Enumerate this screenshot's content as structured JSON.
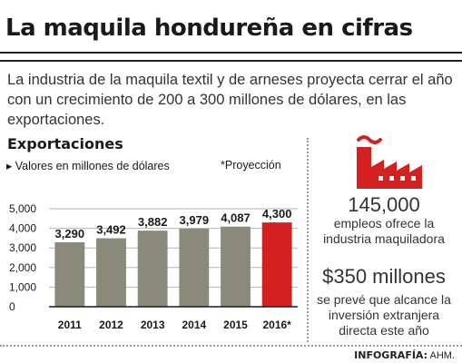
{
  "header": {
    "title": "La maquila hondureña en cifras"
  },
  "intro": "La industria de la maquila textil y de arneses proyecta cerrar el año con un crecimiento de 200 a 300 millones de dólares, en las exportaciones.",
  "chart_section": {
    "title": "Exportaciones",
    "units": "▸ Valores en millones de dólares",
    "projection_note": "*Proyección"
  },
  "chart_data": {
    "type": "bar",
    "title": "Exportaciones",
    "ylabel": "Valores en millones de dólares",
    "categories": [
      "2011",
      "2012",
      "2013",
      "2014",
      "2015",
      "2016*"
    ],
    "values": [
      3290,
      3492,
      3882,
      3979,
      4087,
      4300
    ],
    "value_labels": [
      "3,290",
      "3,492",
      "3,882",
      "3,979",
      "4,087",
      "4,300"
    ],
    "yticks": [
      "0",
      "1,000",
      "2,000",
      "3,000",
      "4,000",
      "5,000"
    ],
    "ylim": [
      0,
      5000
    ],
    "grid": true,
    "colors": {
      "bar": "#8a8a7a",
      "projection": "#d42020",
      "grid": "#b5b5b5"
    },
    "highlight_index": 5
  },
  "stats": [
    {
      "value": "145,000",
      "description": "empleos ofrece la industria maquiladora",
      "icon": "factory-icon"
    },
    {
      "value": "$350 millones",
      "description": "se prevé que alcance la inversión extranjera directa este año"
    }
  ],
  "colors": {
    "accent": "#d42020"
  },
  "footer": {
    "credit_label": "INFOGRAFÍA:",
    "credit_author": "AHM."
  }
}
